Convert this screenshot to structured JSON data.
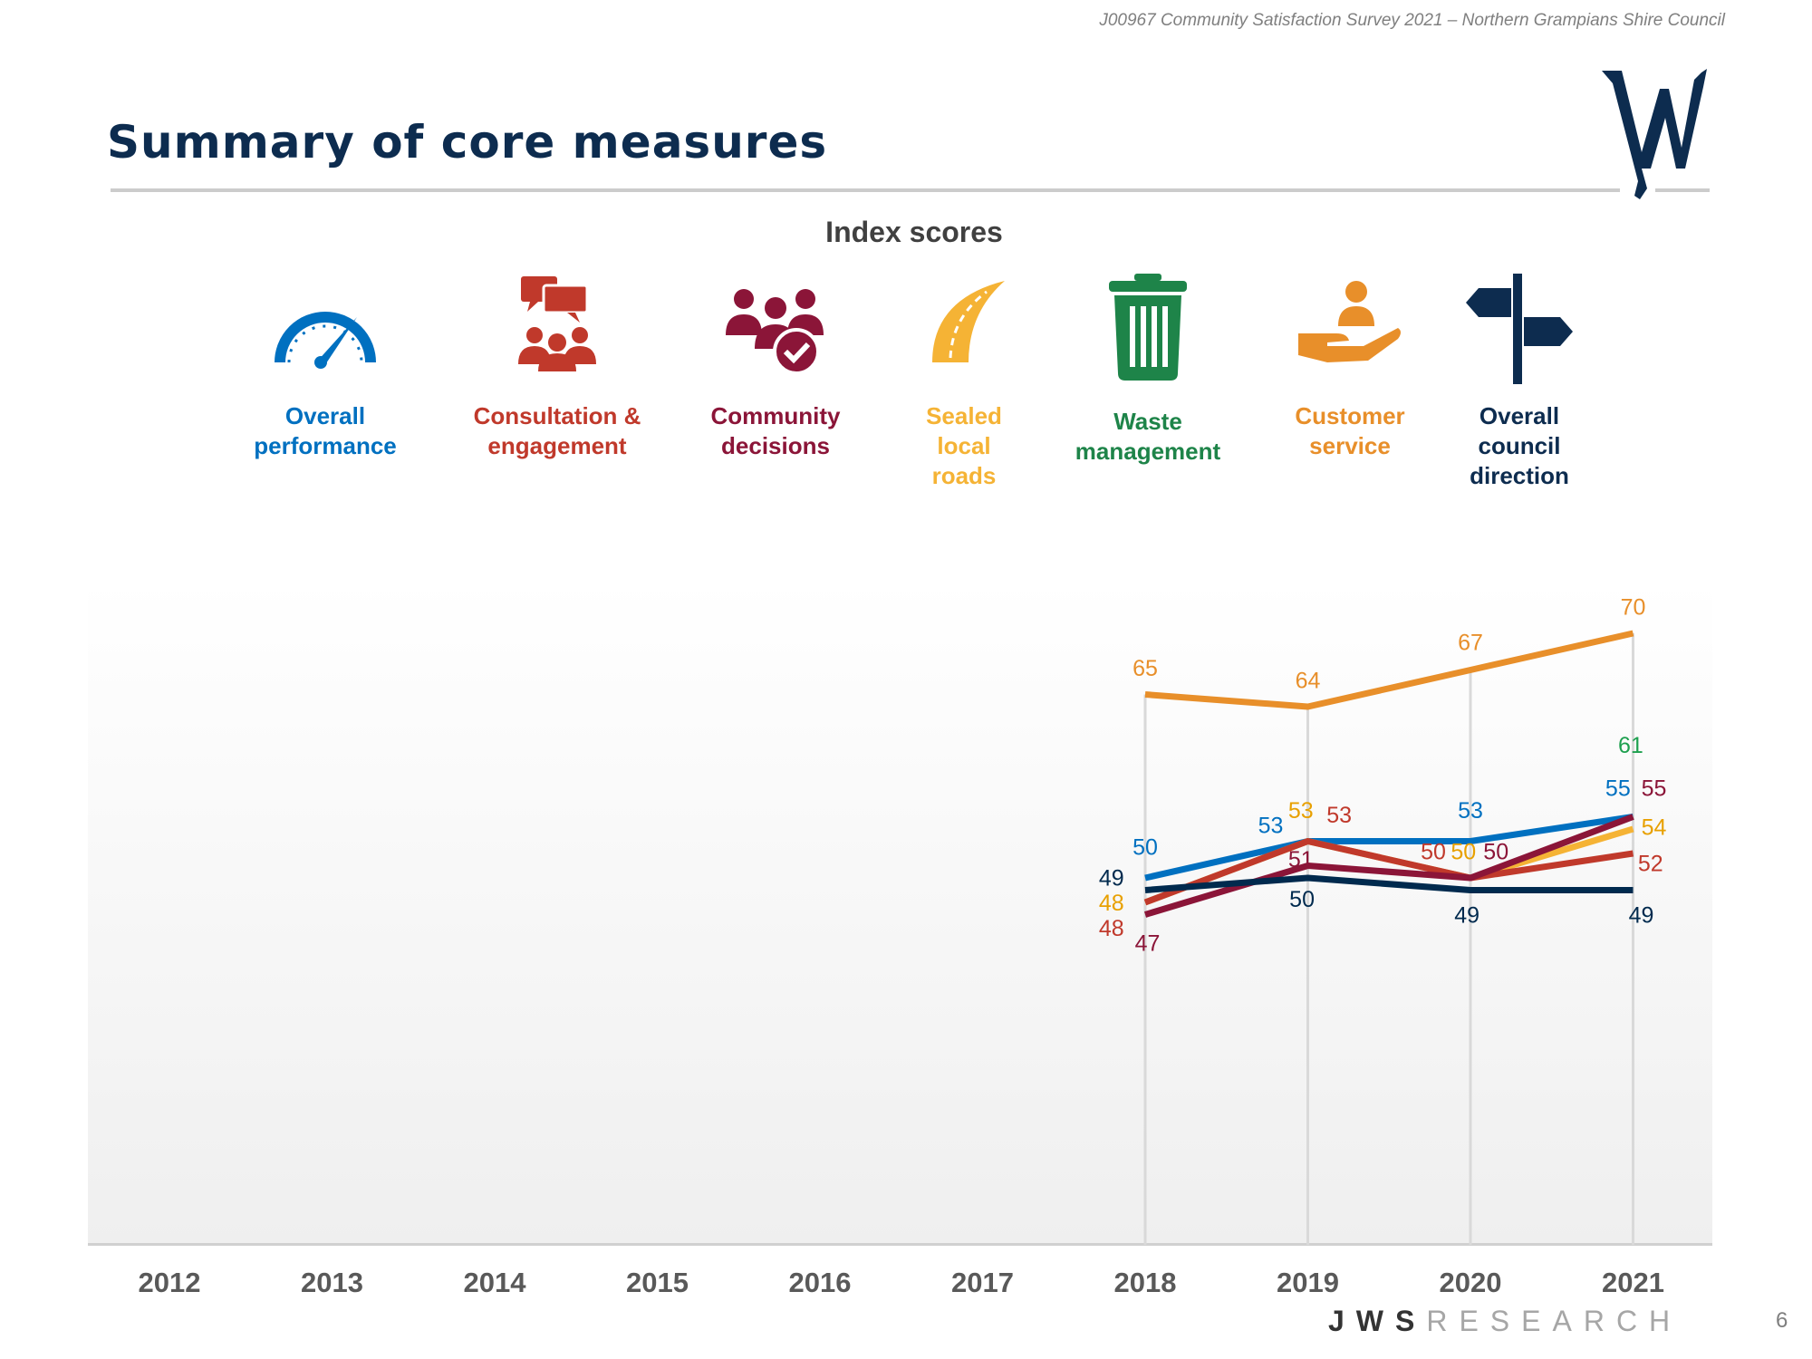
{
  "header": {
    "doc_title": "J00967 Community Satisfaction Survey 2021 – Northern Grampians Shire Council"
  },
  "page_title": "Summary of core measures",
  "subtitle": "Index scores",
  "logo_text": "JWS",
  "measures": [
    {
      "label_lines": [
        "Overall",
        "performance"
      ],
      "icon": "speedometer-icon",
      "color": "#0070c0"
    },
    {
      "label_lines": [
        "Consultation &",
        "engagement"
      ],
      "icon": "people-speech-icon",
      "color": "#c0392b"
    },
    {
      "label_lines": [
        "Community",
        "decisions"
      ],
      "icon": "people-check-icon",
      "color": "#8b1538"
    },
    {
      "label_lines": [
        "Sealed",
        "local",
        "roads"
      ],
      "icon": "road-icon",
      "color": "#f5b335"
    },
    {
      "label_lines": [
        "Waste",
        "management"
      ],
      "icon": "trash-bin-icon",
      "color": "#1e8449"
    },
    {
      "label_lines": [
        "Customer",
        "service"
      ],
      "icon": "hand-person-icon",
      "color": "#e88f2a"
    },
    {
      "label_lines": [
        "Overall",
        "council",
        "direction"
      ],
      "icon": "signpost-icon",
      "color": "#0d2c4f"
    }
  ],
  "chart_data": {
    "type": "line",
    "categories": [
      "2012",
      "2013",
      "2014",
      "2015",
      "2016",
      "2017",
      "2018",
      "2019",
      "2020",
      "2021"
    ],
    "ylim": [
      20,
      72
    ],
    "grid": "vertical lines at years with data",
    "legend": "icon row above chart",
    "series": [
      {
        "name": "Overall performance",
        "color": "#0070c0",
        "label_color": "#0070c0",
        "values": [
          null,
          null,
          null,
          null,
          null,
          null,
          50,
          53,
          53,
          55
        ]
      },
      {
        "name": "Sealed local roads",
        "color": "#f5b335",
        "label_color": "#e8a000",
        "values": [
          null,
          null,
          null,
          null,
          null,
          null,
          48,
          53,
          50,
          54
        ]
      },
      {
        "name": "Consultation & engagement",
        "color": "#c0392b",
        "label_color": "#c0392b",
        "values": [
          null,
          null,
          null,
          null,
          null,
          null,
          48,
          53,
          50,
          52
        ]
      },
      {
        "name": "Community decisions",
        "color": "#8b1538",
        "label_color": "#8b1538",
        "values": [
          null,
          null,
          null,
          null,
          null,
          null,
          47,
          51,
          50,
          55
        ]
      },
      {
        "name": "Overall council direction",
        "color": "#002a4e",
        "label_color": "#002a4e",
        "values": [
          null,
          null,
          null,
          null,
          null,
          null,
          49,
          50,
          49,
          49
        ]
      },
      {
        "name": "Customer service",
        "color": "#e88f2a",
        "label_color": "#e88f2a",
        "values": [
          null,
          null,
          null,
          null,
          null,
          null,
          65,
          64,
          67,
          70
        ]
      },
      {
        "name": "Waste management",
        "color": "#1e8449",
        "label_color": "#1ea04f",
        "values": [
          null,
          null,
          null,
          null,
          null,
          null,
          null,
          null,
          null,
          61
        ]
      }
    ]
  },
  "footer": {
    "brand_bold": "JWS",
    "brand_light": "RESEARCH",
    "page_number": "6"
  }
}
